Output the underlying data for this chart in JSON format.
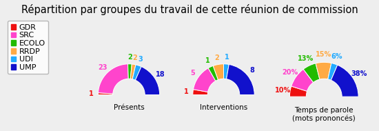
{
  "title": "Répartition par groupes du travail de cette réunion de commission",
  "groups": [
    "GDR",
    "SRC",
    "ECOLO",
    "RRDP",
    "UDI",
    "UMP"
  ],
  "colors": [
    "#ee1111",
    "#ff44cc",
    "#22bb00",
    "#ffaa44",
    "#22aaff",
    "#1111cc"
  ],
  "charts": [
    {
      "label": "Présents",
      "values": [
        1,
        23,
        2,
        2,
        3,
        18
      ],
      "annotations": [
        "1",
        "23",
        "2",
        "2",
        "3",
        "18"
      ]
    },
    {
      "label": "Interventions",
      "values": [
        1,
        5,
        1,
        2,
        1,
        8
      ],
      "annotations": [
        "1",
        "5",
        "1",
        "2",
        "1",
        "8"
      ]
    },
    {
      "label": "Temps de parole\n(mots prononcés)",
      "values": [
        10,
        20,
        13,
        15,
        6,
        38
      ],
      "annotations": [
        "10%",
        "20%",
        "13%",
        "15%",
        "6%",
        "38%"
      ]
    }
  ],
  "background_color": "#eeeeee",
  "title_fontsize": 10.5,
  "legend_fontsize": 8,
  "annotation_fontsize": 7,
  "label_fontsize": 7.5
}
